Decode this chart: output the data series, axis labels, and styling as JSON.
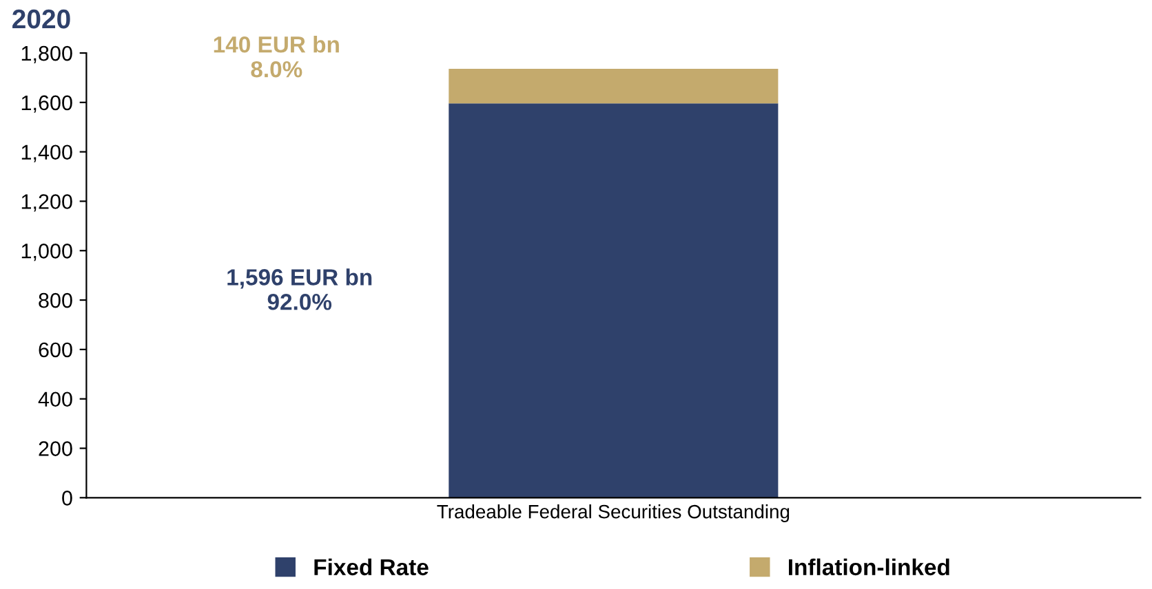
{
  "chart_data": {
    "type": "bar",
    "stacked": true,
    "title": "2020",
    "categories": [
      "Tradeable Federal Securities Outstanding"
    ],
    "series": [
      {
        "name": "Fixed Rate",
        "color": "#2f416b",
        "values": [
          1596
        ]
      },
      {
        "name": "Inflation-linked",
        "color": "#c4aa6d",
        "values": [
          140
        ]
      }
    ],
    "annotations": [
      "1,596 EUR bn\n92.0%",
      "140 EUR bn\n8.0%"
    ],
    "ylim": [
      0,
      1800
    ],
    "yticks": [
      0,
      200,
      400,
      {
        "value": 600,
        "label": "600"
      },
      {
        "value": 800,
        "label": "800"
      },
      {
        "value": 1000,
        "label": "1,000"
      },
      {
        "value": 1200,
        "label": "1,200"
      },
      {
        "value": 1400,
        "label": "1,400"
      },
      {
        "value": 1600,
        "label": "1,600"
      },
      {
        "value": 1800,
        "label": "1,800"
      }
    ],
    "grid": false,
    "legend": "bottom"
  }
}
